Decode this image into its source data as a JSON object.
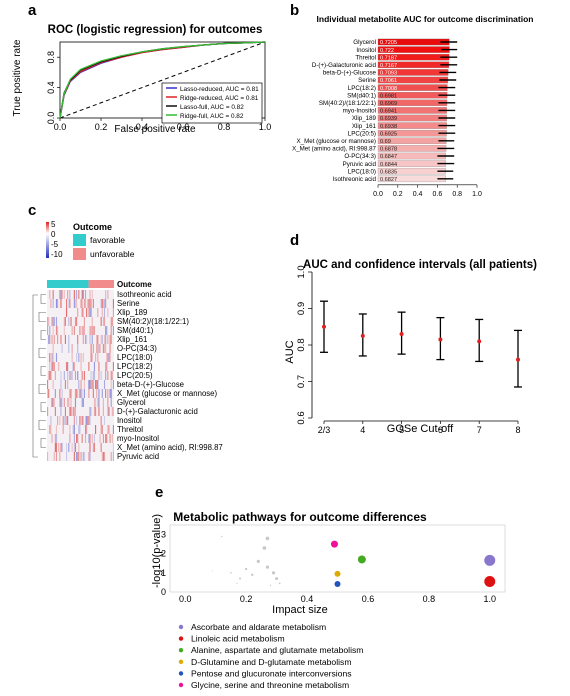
{
  "panels": {
    "a": {
      "letter": "a",
      "chart_data": {
        "type": "line",
        "title": "ROC (logistic regression) for outcomes",
        "xlabel": "False positive rate",
        "ylabel": "True positive rate",
        "xlim": [
          0,
          1
        ],
        "ylim": [
          0,
          1
        ],
        "x_ticks": [
          "0.0",
          "0.2",
          "0.4",
          "0.6",
          "0.8",
          "1.0"
        ],
        "y_ticks": [
          "0.0",
          "0.4",
          "0.8"
        ],
        "legend_position": "bottom-right",
        "series": [
          {
            "name": "Lasso-reduced, AUC = 0.81",
            "color": "#3333cc",
            "x": [
              0,
              0.02,
              0.05,
              0.1,
              0.2,
              0.3,
              0.4,
              0.5,
              0.6,
              0.7,
              0.8,
              0.9,
              1.0
            ],
            "y": [
              0,
              0.3,
              0.48,
              0.6,
              0.72,
              0.8,
              0.86,
              0.9,
              0.93,
              0.96,
              0.98,
              0.99,
              1.0
            ]
          },
          {
            "name": "Ridge-reduced, AUC = 0.81",
            "color": "#dd2222",
            "x": [
              0,
              0.02,
              0.05,
              0.1,
              0.2,
              0.3,
              0.4,
              0.5,
              0.6,
              0.7,
              0.8,
              0.9,
              1.0
            ],
            "y": [
              0,
              0.31,
              0.49,
              0.61,
              0.73,
              0.8,
              0.86,
              0.9,
              0.93,
              0.96,
              0.98,
              0.99,
              1.0
            ]
          },
          {
            "name": "Lasso-full, AUC = 0.82",
            "color": "#111111",
            "x": [
              0,
              0.02,
              0.05,
              0.1,
              0.2,
              0.3,
              0.4,
              0.5,
              0.6,
              0.7,
              0.8,
              0.9,
              1.0
            ],
            "y": [
              0,
              0.33,
              0.5,
              0.63,
              0.74,
              0.81,
              0.87,
              0.91,
              0.94,
              0.96,
              0.98,
              0.99,
              1.0
            ]
          },
          {
            "name": "Ridge-full, AUC = 0.82",
            "color": "#33bb33",
            "x": [
              0,
              0.02,
              0.05,
              0.1,
              0.2,
              0.3,
              0.4,
              0.5,
              0.6,
              0.7,
              0.8,
              0.9,
              1.0
            ],
            "y": [
              0,
              0.32,
              0.51,
              0.64,
              0.75,
              0.82,
              0.87,
              0.91,
              0.94,
              0.96,
              0.98,
              0.99,
              1.0
            ]
          }
        ]
      }
    },
    "b": {
      "letter": "b",
      "chart_data": {
        "type": "bar",
        "orientation": "horizontal",
        "title": "Individual metabolite AUC for outcome discrimination",
        "xlim": [
          0,
          1
        ],
        "x_ticks": [
          "0.0",
          "0.2",
          "0.4",
          "0.6",
          "0.8",
          "1.0"
        ],
        "categories": [
          "Glycerol",
          "Inositol",
          "Threitol",
          "D-(+)-Galacturonic acid",
          "beta-D-(+)-Glucose",
          "Serine",
          "LPC(18:2)",
          "SM(d40:1)",
          "SM(40:2)/(18:1/22:1)",
          "myo-Inositol",
          "Xlip_189",
          "Xlip_161",
          "LPC(20:5)",
          "X_Met (glucose or mannose)",
          "X_Met (amino acid), RI:998.87",
          "O-PC(34:3)",
          "Pyruvic acid",
          "LPC(18:0)",
          "Isothreonic acid"
        ],
        "value_labels": [
          "0.7205",
          "0.722",
          "0.7187",
          "0.7167",
          "0.7093",
          "0.7061",
          "0.7008",
          "0.6981",
          "0.6969",
          "0.6941",
          "0.6939",
          "0.6938",
          "0.6925",
          "0.69",
          "0.6878",
          "0.6847",
          "0.6844",
          "0.6835",
          "0.6827"
        ],
        "values": [
          0.7205,
          0.722,
          0.7187,
          0.7167,
          0.7093,
          0.7061,
          0.7008,
          0.6981,
          0.6969,
          0.6941,
          0.6939,
          0.6938,
          0.6925,
          0.69,
          0.6878,
          0.6847,
          0.6844,
          0.6835,
          0.6827
        ],
        "ci_low": [
          0.63,
          0.64,
          0.63,
          0.63,
          0.62,
          0.62,
          0.61,
          0.61,
          0.61,
          0.61,
          0.61,
          0.61,
          0.61,
          0.61,
          0.6,
          0.6,
          0.6,
          0.6,
          0.6
        ],
        "ci_high": [
          0.8,
          0.8,
          0.8,
          0.8,
          0.79,
          0.79,
          0.78,
          0.78,
          0.78,
          0.78,
          0.78,
          0.78,
          0.78,
          0.77,
          0.77,
          0.77,
          0.77,
          0.76,
          0.76
        ]
      }
    },
    "c": {
      "letter": "c",
      "chart_data": {
        "type": "heatmap",
        "scale_ticks": [
          "5",
          "0",
          "-5",
          "-10"
        ],
        "legend_title": "Outcome",
        "classes": [
          {
            "name": "favorable",
            "color": "#33cccc"
          },
          {
            "name": "unfavorable",
            "color": "#f28c8c"
          }
        ],
        "column_annotation_label": "Outcome",
        "favorable_fraction": 0.62,
        "rows": [
          "Isothreonic acid",
          "Serine",
          "Xlip_189",
          "SM(40:2)/(18:1/22:1)",
          "SM(d40:1)",
          "Xlip_161",
          "O-PC(34:3)",
          "LPC(18:0)",
          "LPC(18:2)",
          "LPC(20:5)",
          "beta-D-(+)-Glucose",
          "X_Met (glucose or mannose)",
          "Glycerol",
          "D-(+)-Galacturonic acid",
          "Inositol",
          "Threitol",
          "myo-Inositol",
          "X_Met (amino acid), RI:998.87",
          "Pyruvic acid"
        ]
      }
    },
    "d": {
      "letter": "d",
      "chart_data": {
        "type": "scatter",
        "title": "AUC and confidence intervals (all patients)",
        "xlabel": "GOSe Cut-off",
        "ylabel": "AUC",
        "categories": [
          "2/3",
          "4",
          "5",
          "6",
          "7",
          "8"
        ],
        "values": [
          0.85,
          0.825,
          0.83,
          0.815,
          0.81,
          0.76
        ],
        "ci_low": [
          0.78,
          0.77,
          0.775,
          0.76,
          0.755,
          0.685
        ],
        "ci_high": [
          0.92,
          0.885,
          0.89,
          0.875,
          0.87,
          0.84
        ],
        "ylim": [
          0.6,
          1.0
        ],
        "y_ticks": [
          "0.6",
          "0.7",
          "0.8",
          "0.9",
          "1.0"
        ]
      }
    },
    "e": {
      "letter": "e",
      "chart_data": {
        "type": "scatter",
        "title": "Metabolic pathways for outcome differences",
        "xlabel": "Impact size",
        "ylabel": "-log10(p-value)",
        "xlim": [
          -0.05,
          1.05
        ],
        "ylim": [
          0,
          3.5
        ],
        "x_ticks": [
          "0.0",
          "0.2",
          "0.4",
          "0.6",
          "0.8",
          "1.0"
        ],
        "y_ticks": [
          "0",
          "1",
          "2",
          "3"
        ],
        "highlighted": [
          {
            "name": "Ascorbate and aldarate metabolism",
            "color": "#8877cc",
            "x": 1.0,
            "y": 1.65,
            "size": 5.5
          },
          {
            "name": "Linoleic acid metabolism",
            "color": "#dd1111",
            "x": 1.0,
            "y": 0.55,
            "size": 5.5
          },
          {
            "name": "Alanine, aspartate and glutamate metabolism",
            "color": "#44aa22",
            "x": 0.58,
            "y": 1.7,
            "size": 4
          },
          {
            "name": "D-Glutamine and D-glutamate metabolism",
            "color": "#ddaa00",
            "x": 0.5,
            "y": 0.95,
            "size": 3
          },
          {
            "name": "Pentose and glucuronate interconversions",
            "color": "#2255bb",
            "x": 0.5,
            "y": 0.42,
            "size": 3
          },
          {
            "name": "Glycine, serine and threonine metabolism",
            "color": "#ee1199",
            "x": 0.49,
            "y": 2.5,
            "size": 3.5
          }
        ],
        "background_points": {
          "color": "#c8c8c8",
          "x": [
            0.27,
            0.26,
            0.24,
            0.27,
            0.29,
            0.3,
            0.2,
            0.22,
            0.18,
            0.15,
            0.12,
            0.31,
            0.09,
            0.17,
            0.28
          ],
          "y": [
            2.8,
            2.3,
            1.6,
            1.3,
            1.0,
            0.7,
            1.2,
            0.9,
            0.7,
            1.0,
            2.9,
            0.45,
            1.1,
            0.45,
            0.35
          ],
          "size": [
            1.8,
            1.8,
            1.6,
            1.6,
            1.6,
            1.5,
            1.2,
            1.2,
            1.0,
            0.8,
            0.7,
            0.9,
            0.5,
            0.6,
            0.7
          ]
        }
      }
    }
  }
}
